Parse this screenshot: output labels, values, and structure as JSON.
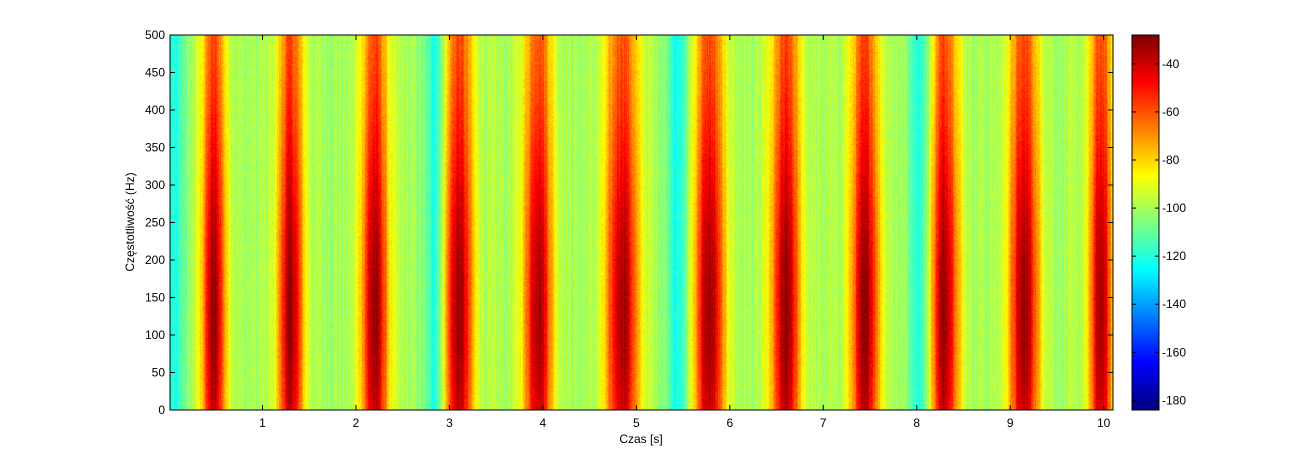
{
  "chart_data": {
    "type": "heatmap",
    "title": "",
    "xlabel": "Czas [s]",
    "ylabel": "Częstotliwość (Hz)",
    "xlim": [
      0.01,
      10.1
    ],
    "ylim": [
      0,
      500
    ],
    "x_ticks": [
      1,
      2,
      3,
      4,
      5,
      6,
      7,
      8,
      9,
      10
    ],
    "y_ticks": [
      0,
      50,
      100,
      150,
      200,
      250,
      300,
      350,
      400,
      450,
      500
    ],
    "colorbar": {
      "range": [
        -184,
        -28
      ],
      "ticks": [
        -40,
        -60,
        -80,
        -100,
        -120,
        -140,
        -160,
        -180
      ],
      "colormap": "jet"
    },
    "bursts": [
      {
        "center": 0.48,
        "width": 0.3
      },
      {
        "center": 1.3,
        "width": 0.32
      },
      {
        "center": 2.2,
        "width": 0.34
      },
      {
        "center": 3.1,
        "width": 0.36
      },
      {
        "center": 3.95,
        "width": 0.36
      },
      {
        "center": 4.85,
        "width": 0.4
      },
      {
        "center": 5.78,
        "width": 0.38
      },
      {
        "center": 6.6,
        "width": 0.36
      },
      {
        "center": 7.45,
        "width": 0.36
      },
      {
        "center": 8.3,
        "width": 0.36
      },
      {
        "center": 9.15,
        "width": 0.38
      },
      {
        "center": 9.97,
        "width": 0.28
      }
    ],
    "quiet_gaps": [
      0.05,
      2.85,
      5.45,
      8.05
    ],
    "burst_peak_db": -32,
    "background_db": -100,
    "gap_db": -125,
    "burst_peak_frequency": 130
  }
}
